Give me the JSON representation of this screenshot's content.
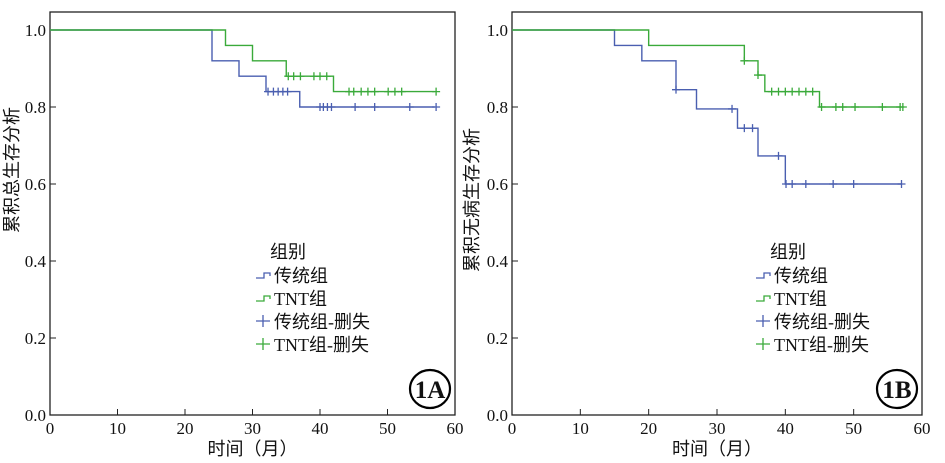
{
  "chart_data": [
    {
      "id": "1A",
      "type": "line",
      "subtype": "kaplan-meier",
      "panel_label": "1A",
      "xlabel": "时间（月）",
      "ylabel": "累积总生存分析",
      "xlim": [
        0,
        60
      ],
      "ylim": [
        0,
        1.0
      ],
      "xticks": [
        "0",
        "10",
        "20",
        "30",
        "40",
        "50",
        "60"
      ],
      "yticks": [
        "0.0",
        "0.2",
        "0.4",
        "0.6",
        "0.8",
        "1.0"
      ],
      "grid": false,
      "legend": {
        "title": "组别",
        "placement": "bottom-right",
        "entries": [
          "传统组",
          "TNT组",
          "传统组-删失",
          "TNT组-删失"
        ]
      },
      "series": [
        {
          "name": "传统组",
          "color": "#4a5fb0",
          "steps": [
            [
              0,
              1.0
            ],
            [
              24,
              0.92
            ],
            [
              28,
              0.88
            ],
            [
              32,
              0.84
            ],
            [
              37,
              0.8
            ]
          ],
          "end": 57,
          "censored": [
            32.3,
            33.1,
            33.8,
            34.5,
            35.2,
            40,
            40.5,
            41.1,
            41.7,
            45.2,
            48.1,
            53.3,
            57.2
          ]
        },
        {
          "name": "TNT组",
          "color": "#3aaa3a",
          "steps": [
            [
              0,
              1.0
            ],
            [
              26,
              0.96
            ],
            [
              30,
              0.92
            ],
            [
              35,
              0.88
            ],
            [
              42,
              0.84
            ]
          ],
          "end": 57,
          "censored": [
            35.3,
            36.1,
            37.1,
            39.1,
            40,
            41,
            44.3,
            45,
            46.1,
            47.1,
            48.1,
            50.1,
            51.1,
            52.1,
            57.2
          ]
        }
      ]
    },
    {
      "id": "1B",
      "type": "line",
      "subtype": "kaplan-meier",
      "panel_label": "1B",
      "xlabel": "时间（月）",
      "ylabel": "累积无病生存分析",
      "xlim": [
        0,
        60
      ],
      "ylim": [
        0,
        1.0
      ],
      "xticks": [
        "0",
        "10",
        "20",
        "30",
        "40",
        "50",
        "60"
      ],
      "yticks": [
        "0.0",
        "0.2",
        "0.4",
        "0.6",
        "0.8",
        "1.0"
      ],
      "grid": false,
      "legend": {
        "title": "组别",
        "placement": "bottom-right",
        "entries": [
          "传统组",
          "TNT组",
          "传统组-删失",
          "TNT组-删失"
        ]
      },
      "series": [
        {
          "name": "传统组",
          "color": "#4a5fb0",
          "steps": [
            [
              0,
              1.0
            ],
            [
              15,
              0.96
            ],
            [
              19,
              0.92
            ],
            [
              24,
              0.845
            ],
            [
              27,
              0.795
            ],
            [
              33,
              0.745
            ],
            [
              36,
              0.673
            ],
            [
              40,
              0.6
            ]
          ],
          "end": 57,
          "censored": [
            24,
            32.2,
            34,
            35.2,
            39,
            40.1,
            41,
            43,
            47,
            50,
            57
          ]
        },
        {
          "name": "TNT组",
          "color": "#3aaa3a",
          "steps": [
            [
              0,
              1.0
            ],
            [
              20,
              0.96
            ],
            [
              34,
              0.92
            ],
            [
              36,
              0.883
            ],
            [
              37,
              0.84
            ],
            [
              45,
              0.8
            ]
          ],
          "end": 57,
          "censored": [
            34,
            36,
            38,
            39,
            40,
            41,
            42,
            43,
            44,
            45.3,
            47.4,
            48.4,
            50.2,
            54.2,
            56.8,
            57.2
          ]
        }
      ]
    }
  ]
}
